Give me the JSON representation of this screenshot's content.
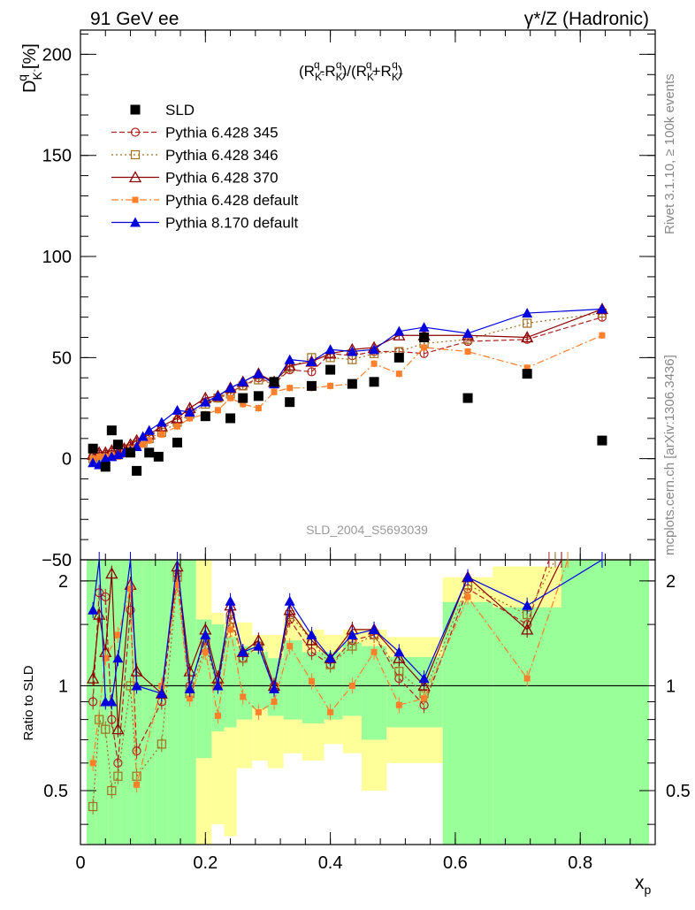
{
  "header": {
    "left": "91 GeV ee",
    "right": "γ*/Z (Hadronic)"
  },
  "side_labels": {
    "top": "Rivet 3.1.10, ≥ 100k events",
    "bottom": "mcplots.cern.ch [arXiv:1306.3436]"
  },
  "analysis_id": "SLD_2004_S5693039",
  "formula": "(R_K-^q - R_K+^q)/(R_K-^q + R_K+^q)",
  "colors": {
    "SLD": "#000000",
    "p345": "#b22222",
    "p346": "#a07020",
    "p370": "#8b0000",
    "p6def": "#ff7f2a",
    "p8def": "#0000dd",
    "band_green": "#99ff99",
    "band_yellow": "#ffff99"
  },
  "chart_data": {
    "type": "scatter",
    "title": "",
    "xlabel": "x_p",
    "ylabel": "D_K-^q [%]",
    "ratio_ylabel": "Ratio to SLD",
    "xlim": [
      0,
      0.92
    ],
    "ylim": [
      -50,
      212
    ],
    "ratio_ylim": [
      0.35,
      2.3
    ],
    "ratio_log": true,
    "x_ticks": [
      "0",
      "0.2",
      "0.4",
      "0.6",
      "0.8"
    ],
    "x_tick_values": [
      0,
      0.2,
      0.4,
      0.6,
      0.8
    ],
    "y_ticks": [
      "−50",
      "0",
      "50",
      "100",
      "150",
      "200"
    ],
    "y_tick_values": [
      -50,
      0,
      50,
      100,
      150,
      200
    ],
    "ratio_ticks": [
      "0.5",
      "1",
      "2"
    ],
    "ratio_tick_values": [
      0.5,
      1,
      2
    ],
    "legend_position": "top-left",
    "series": [
      {
        "name": "SLD",
        "key": "SLD",
        "marker": "square_filled",
        "dash": "none",
        "x": [
          0.02,
          0.04,
          0.05,
          0.06,
          0.08,
          0.09,
          0.11,
          0.125,
          0.155,
          0.2,
          0.24,
          0.26,
          0.285,
          0.31,
          0.335,
          0.37,
          0.4,
          0.435,
          0.47,
          0.51,
          0.55,
          0.62,
          0.715,
          0.835
        ],
        "y": [
          5,
          -4,
          14,
          7,
          3,
          -6,
          3,
          1,
          8,
          21,
          20,
          30,
          31,
          38,
          28,
          36,
          44,
          37,
          38,
          50,
          60,
          30,
          42,
          9
        ]
      },
      {
        "name": "Pythia 6.428 345",
        "key": "p345",
        "marker": "circle_open",
        "dash": "6,3",
        "x": [
          0.02,
          0.03,
          0.04,
          0.05,
          0.06,
          0.07,
          0.08,
          0.09,
          0.1,
          0.11,
          0.13,
          0.155,
          0.175,
          0.2,
          0.22,
          0.24,
          0.26,
          0.285,
          0.31,
          0.335,
          0.37,
          0.4,
          0.435,
          0.47,
          0.51,
          0.55,
          0.62,
          0.715,
          0.835
        ],
        "y": [
          1,
          2,
          2,
          3,
          2,
          4,
          6,
          8,
          9,
          11,
          15,
          19,
          23,
          28,
          30,
          33,
          36,
          40,
          37,
          44,
          43,
          52,
          51,
          53,
          53,
          52,
          58,
          59,
          70
        ]
      },
      {
        "name": "Pythia 6.428 346",
        "key": "p346",
        "marker": "square_open",
        "dash": "2,3",
        "x": [
          0.02,
          0.03,
          0.04,
          0.05,
          0.06,
          0.07,
          0.08,
          0.09,
          0.1,
          0.11,
          0.13,
          0.155,
          0.175,
          0.2,
          0.22,
          0.24,
          0.26,
          0.285,
          0.31,
          0.335,
          0.37,
          0.4,
          0.435,
          0.47,
          0.51,
          0.55,
          0.62,
          0.715,
          0.835
        ],
        "y": [
          0,
          1,
          1,
          2,
          2,
          3,
          5,
          7,
          8,
          10,
          13,
          18,
          22,
          27,
          30,
          32,
          36,
          39,
          37,
          45,
          50,
          50,
          49,
          52,
          53,
          57,
          59,
          67,
          72
        ]
      },
      {
        "name": "Pythia 6.428 370",
        "key": "p370",
        "marker": "triangle_open",
        "dash": "none",
        "x": [
          0.02,
          0.03,
          0.04,
          0.05,
          0.06,
          0.07,
          0.08,
          0.09,
          0.1,
          0.11,
          0.13,
          0.155,
          0.175,
          0.2,
          0.22,
          0.24,
          0.26,
          0.285,
          0.31,
          0.335,
          0.37,
          0.4,
          0.435,
          0.47,
          0.51,
          0.55,
          0.62,
          0.715,
          0.835
        ],
        "y": [
          2,
          3,
          3,
          4,
          3,
          5,
          7,
          9,
          10,
          12,
          16,
          20,
          25,
          30,
          31,
          35,
          38,
          42,
          38,
          46,
          48,
          52,
          54,
          55,
          61,
          61,
          61,
          60,
          74
        ]
      },
      {
        "name": "Pythia 6.428 default",
        "key": "p6def",
        "marker": "square_filled_small",
        "dash": "8,3,2,3",
        "x": [
          0.02,
          0.03,
          0.04,
          0.05,
          0.06,
          0.07,
          0.08,
          0.09,
          0.1,
          0.11,
          0.13,
          0.155,
          0.175,
          0.2,
          0.22,
          0.24,
          0.26,
          0.285,
          0.31,
          0.335,
          0.37,
          0.4,
          0.435,
          0.47,
          0.51,
          0.55,
          0.62,
          0.715,
          0.835
        ],
        "y": [
          0,
          1,
          1,
          2,
          1,
          3,
          5,
          6,
          7,
          9,
          12,
          16,
          20,
          22,
          24,
          30,
          27,
          25,
          33,
          35,
          35,
          36,
          37,
          47,
          42,
          55,
          53,
          45,
          61
        ]
      },
      {
        "name": "Pythia 8.170 default",
        "key": "p8def",
        "marker": "triangle_filled",
        "dash": "none",
        "x": [
          0.02,
          0.03,
          0.04,
          0.05,
          0.06,
          0.07,
          0.08,
          0.09,
          0.1,
          0.11,
          0.13,
          0.155,
          0.175,
          0.2,
          0.22,
          0.24,
          0.26,
          0.285,
          0.31,
          0.335,
          0.37,
          0.4,
          0.435,
          0.47,
          0.51,
          0.55,
          0.62,
          0.715,
          0.835
        ],
        "y": [
          -2,
          -3,
          0,
          1,
          2,
          3,
          4,
          6,
          11,
          14,
          18,
          24,
          23,
          28,
          31,
          35,
          38,
          42,
          37,
          49,
          48,
          54,
          53,
          54,
          63,
          65,
          62,
          72,
          74
        ]
      }
    ],
    "ratio_series": [
      {
        "key": "p345",
        "x": [
          0.02,
          0.03,
          0.04,
          0.05,
          0.06,
          0.08,
          0.09,
          0.13,
          0.155,
          0.175,
          0.2,
          0.22,
          0.24,
          0.26,
          0.285,
          0.31,
          0.335,
          0.37,
          0.4,
          0.435,
          0.47,
          0.51,
          0.55,
          0.62,
          0.715,
          0.75
        ],
        "y": [
          0.9,
          1.85,
          1.8,
          0.8,
          0.6,
          1.65,
          0.65,
          0.9,
          2.1,
          1.0,
          1.35,
          1.0,
          1.6,
          1.2,
          1.3,
          1.0,
          1.55,
          1.25,
          1.15,
          1.35,
          1.4,
          1.05,
          0.88,
          1.9,
          1.5,
          2.3
        ]
      },
      {
        "key": "p346",
        "x": [
          0.02,
          0.03,
          0.04,
          0.05,
          0.06,
          0.08,
          0.09,
          0.13,
          0.155,
          0.175,
          0.2,
          0.22,
          0.24,
          0.26,
          0.285,
          0.31,
          0.335,
          0.37,
          0.4,
          0.435,
          0.47,
          0.51,
          0.55,
          0.62,
          0.715,
          0.76
        ],
        "y": [
          0.45,
          0.8,
          0.75,
          0.5,
          0.55,
          1.0,
          0.55,
          0.68,
          2.05,
          0.95,
          1.3,
          1.0,
          1.55,
          1.2,
          1.3,
          0.98,
          1.6,
          1.35,
          1.15,
          1.3,
          1.4,
          1.1,
          0.95,
          1.95,
          1.6,
          2.3
        ]
      },
      {
        "key": "p370",
        "x": [
          0.02,
          0.03,
          0.04,
          0.05,
          0.06,
          0.08,
          0.09,
          0.13,
          0.155,
          0.175,
          0.2,
          0.22,
          0.24,
          0.26,
          0.285,
          0.31,
          0.335,
          0.37,
          0.4,
          0.435,
          0.47,
          0.51,
          0.55,
          0.62,
          0.715,
          0.77
        ],
        "y": [
          1.05,
          1.6,
          1.25,
          2.1,
          0.75,
          1.95,
          1.1,
          0.95,
          2.2,
          1.1,
          1.45,
          1.05,
          1.7,
          1.25,
          1.35,
          1.0,
          1.65,
          1.35,
          1.2,
          1.45,
          1.45,
          1.2,
          1.0,
          2.05,
          1.45,
          2.3
        ]
      },
      {
        "key": "p6def",
        "x": [
          0.02,
          0.04,
          0.06,
          0.08,
          0.09,
          0.13,
          0.155,
          0.175,
          0.2,
          0.22,
          0.24,
          0.26,
          0.285,
          0.31,
          0.335,
          0.37,
          0.4,
          0.435,
          0.47,
          0.51,
          0.55,
          0.62,
          0.715,
          0.78
        ],
        "y": [
          0.6,
          1.2,
          1.4,
          1.9,
          0.52,
          1.0,
          1.95,
          0.92,
          1.25,
          0.82,
          1.45,
          0.93,
          0.84,
          0.9,
          1.3,
          1.03,
          0.84,
          1.0,
          1.25,
          0.88,
          0.92,
          1.8,
          1.05,
          2.3
        ]
      },
      {
        "key": "p8def",
        "x": [
          0.02,
          0.03,
          0.04,
          0.05,
          0.06,
          0.08,
          0.09,
          0.13,
          0.155,
          0.175,
          0.2,
          0.22,
          0.24,
          0.26,
          0.285,
          0.31,
          0.335,
          0.37,
          0.4,
          0.435,
          0.47,
          0.51,
          0.55,
          0.62,
          0.715,
          0.835
        ],
        "y": [
          1.65,
          2.3,
          0.9,
          0.9,
          1.2,
          2.3,
          1.0,
          0.95,
          2.3,
          0.98,
          1.4,
          1.0,
          1.75,
          1.25,
          1.3,
          0.98,
          1.75,
          1.4,
          1.2,
          1.4,
          1.45,
          1.25,
          1.05,
          2.05,
          1.7,
          2.3
        ]
      }
    ],
    "ratio_bands": [
      {
        "x0": 0.01,
        "x1": 0.025,
        "g": [
          0.35,
          2.3
        ],
        "y": [
          0.35,
          2.3
        ]
      },
      {
        "x0": 0.025,
        "x1": 0.045,
        "g": [
          0.35,
          2.3
        ],
        "y": [
          0.35,
          2.3
        ]
      },
      {
        "x0": 0.045,
        "x1": 0.065,
        "g": [
          0.35,
          2.3
        ],
        "y": [
          0.35,
          2.3
        ]
      },
      {
        "x0": 0.065,
        "x1": 0.085,
        "g": [
          0.35,
          2.3
        ],
        "y": [
          0.35,
          2.3
        ]
      },
      {
        "x0": 0.085,
        "x1": 0.1,
        "g": [
          0.35,
          2.3
        ],
        "y": [
          0.35,
          2.3
        ]
      },
      {
        "x0": 0.1,
        "x1": 0.12,
        "g": [
          0.35,
          2.3
        ],
        "y": [
          0.35,
          2.3
        ]
      },
      {
        "x0": 0.12,
        "x1": 0.14,
        "g": [
          0.35,
          2.3
        ],
        "y": [
          0.35,
          2.3
        ]
      },
      {
        "x0": 0.14,
        "x1": 0.165,
        "g": [
          0.35,
          2.3
        ],
        "y": [
          0.35,
          2.3
        ]
      },
      {
        "x0": 0.165,
        "x1": 0.185,
        "g": [
          0.35,
          2.3
        ],
        "y": [
          0.35,
          2.3
        ]
      },
      {
        "x0": 0.185,
        "x1": 0.21,
        "g": [
          0.62,
          1.55
        ],
        "y": [
          0.35,
          2.3
        ]
      },
      {
        "x0": 0.21,
        "x1": 0.23,
        "g": [
          0.74,
          1.5
        ],
        "y": [
          0.4,
          1.62
        ]
      },
      {
        "x0": 0.23,
        "x1": 0.25,
        "g": [
          0.76,
          1.38
        ],
        "y": [
          0.37,
          1.52
        ]
      },
      {
        "x0": 0.25,
        "x1": 0.275,
        "g": [
          0.8,
          1.3
        ],
        "y": [
          0.58,
          1.52
        ]
      },
      {
        "x0": 0.275,
        "x1": 0.3,
        "g": [
          0.86,
          1.25
        ],
        "y": [
          0.61,
          1.4
        ]
      },
      {
        "x0": 0.3,
        "x1": 0.325,
        "g": [
          0.82,
          1.2
        ],
        "y": [
          0.58,
          1.4
        ]
      },
      {
        "x0": 0.325,
        "x1": 0.355,
        "g": [
          0.8,
          1.35
        ],
        "y": [
          0.64,
          1.55
        ]
      },
      {
        "x0": 0.355,
        "x1": 0.39,
        "g": [
          0.78,
          1.25
        ],
        "y": [
          0.61,
          1.45
        ]
      },
      {
        "x0": 0.39,
        "x1": 0.42,
        "g": [
          0.8,
          1.25
        ],
        "y": [
          0.68,
          1.4
        ]
      },
      {
        "x0": 0.42,
        "x1": 0.45,
        "g": [
          0.82,
          1.33
        ],
        "y": [
          0.64,
          1.45
        ]
      },
      {
        "x0": 0.45,
        "x1": 0.49,
        "g": [
          0.7,
          1.3
        ],
        "y": [
          0.5,
          1.45
        ]
      },
      {
        "x0": 0.49,
        "x1": 0.58,
        "g": [
          0.76,
          1.21
        ],
        "y": [
          0.6,
          1.38
        ]
      },
      {
        "x0": 0.58,
        "x1": 0.66,
        "g": [
          0.35,
          1.74
        ],
        "y": [
          0.35,
          2.05
        ]
      },
      {
        "x0": 0.66,
        "x1": 0.77,
        "g": [
          0.35,
          1.68
        ],
        "y": [
          0.35,
          2.2
        ]
      },
      {
        "x0": 0.77,
        "x1": 0.91,
        "g": [
          0.35,
          2.3
        ],
        "y": [
          0.35,
          2.3
        ]
      }
    ]
  }
}
